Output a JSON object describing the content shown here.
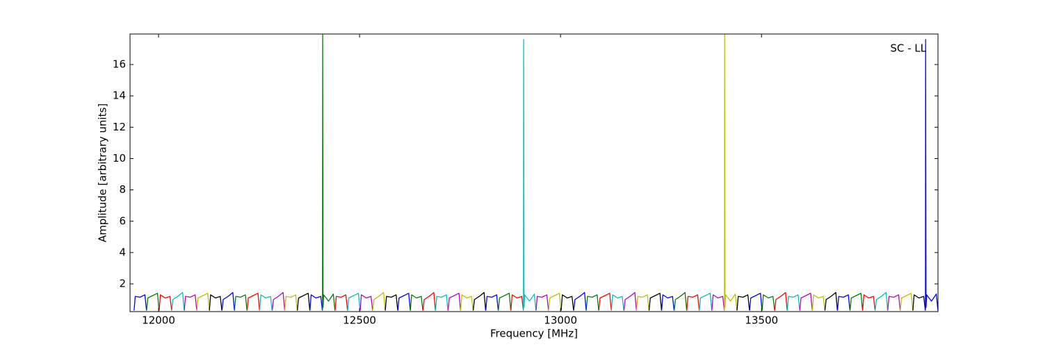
{
  "chart_data": {
    "type": "line",
    "xlabel": "Frequency [MHz]",
    "ylabel": "Amplitude [arbitrary units]",
    "annotation": "SC - LL",
    "xlim": [
      11929,
      13939
    ],
    "ylim": [
      0.23,
      17.95
    ],
    "xticks": [
      12000,
      12500,
      13000,
      13500
    ],
    "yticks": [
      2,
      4,
      6,
      8,
      10,
      12,
      14,
      16
    ],
    "series": [
      {
        "color": "#0000ff",
        "x": [
          11939,
          11942,
          11954,
          11966,
          11970
        ],
        "values": [
          0.3,
          1.2,
          1.15,
          1.3,
          0.3
        ]
      },
      {
        "color": "#008000",
        "x": [
          11970.25,
          11973.25,
          11985.25,
          11997.25,
          12001.25
        ],
        "values": [
          0.3,
          1.1,
          1.25,
          1.4,
          0.3
        ]
      },
      {
        "color": "#ff0000",
        "x": [
          12001.5,
          12004.5,
          12016.5,
          12028.5,
          12032.5
        ],
        "values": [
          0.3,
          1.3,
          1.1,
          1.2,
          0.3
        ]
      },
      {
        "color": "#00bfbf",
        "x": [
          12032.75,
          12035.75,
          12047.75,
          12059.75,
          12063.75
        ],
        "values": [
          0.3,
          1.0,
          1.2,
          1.45,
          0.3
        ]
      },
      {
        "color": "#bf00bf",
        "x": [
          12064,
          12067,
          12079,
          12091,
          12095
        ],
        "values": [
          0.3,
          1.2,
          1.15,
          1.3,
          0.3
        ]
      },
      {
        "color": "#bfbf00",
        "x": [
          12095.25,
          12098.25,
          12110.25,
          12122.25,
          12126.25
        ],
        "values": [
          0.3,
          1.1,
          1.25,
          1.4,
          0.3
        ]
      },
      {
        "color": "#000000",
        "x": [
          12126.5,
          12129.5,
          12141.5,
          12153.5,
          12157.5
        ],
        "values": [
          0.3,
          1.3,
          1.1,
          1.2,
          0.3
        ]
      },
      {
        "color": "#0000ff",
        "x": [
          12157.75,
          12160.75,
          12172.75,
          12184.75,
          12188.75
        ],
        "values": [
          0.3,
          1.0,
          1.2,
          1.45,
          0.3
        ]
      },
      {
        "color": "#008000",
        "x": [
          12189,
          12192,
          12204,
          12216,
          12220
        ],
        "values": [
          0.3,
          1.2,
          1.15,
          1.3,
          0.3
        ]
      },
      {
        "color": "#ff0000",
        "x": [
          12220.25,
          12223.25,
          12235.25,
          12247.25,
          12251.25
        ],
        "values": [
          0.3,
          1.1,
          1.25,
          1.4,
          0.3
        ]
      },
      {
        "color": "#00bfbf",
        "x": [
          12251.5,
          12254.5,
          12266.5,
          12278.5,
          12282.5
        ],
        "values": [
          0.3,
          1.3,
          1.1,
          1.2,
          0.3
        ]
      },
      {
        "color": "#bf00bf",
        "x": [
          12282.75,
          12285.75,
          12297.75,
          12309.75,
          12313.75
        ],
        "values": [
          0.3,
          1.0,
          1.2,
          1.45,
          0.3
        ]
      },
      {
        "color": "#bfbf00",
        "x": [
          12314,
          12317,
          12329,
          12341,
          12345
        ],
        "values": [
          0.3,
          1.2,
          1.15,
          1.3,
          0.3
        ]
      },
      {
        "color": "#000000",
        "x": [
          12345.25,
          12348.25,
          12360.25,
          12372.25,
          12376.25
        ],
        "values": [
          0.3,
          1.1,
          1.25,
          1.4,
          0.3
        ]
      },
      {
        "color": "#0000ff",
        "x": [
          12376.5,
          12379.5,
          12391.5,
          12403.5,
          12407.5
        ],
        "values": [
          0.3,
          1.3,
          1.1,
          1.2,
          0.3
        ]
      },
      {
        "color": "#008000",
        "x": [
          12407.75,
          12408.25,
          12409.25,
          12410.75,
          12422.75,
          12434.75,
          12438.75
        ],
        "values": [
          0.3,
          17.9,
          0.5,
          1.3,
          0.9,
          1.35,
          0.3
        ]
      },
      {
        "color": "#ff0000",
        "x": [
          12439,
          12442,
          12454,
          12466,
          12470
        ],
        "values": [
          0.3,
          1.2,
          1.15,
          1.3,
          0.3
        ]
      },
      {
        "color": "#00bfbf",
        "x": [
          12470.25,
          12473.25,
          12485.25,
          12497.25,
          12501.25
        ],
        "values": [
          0.3,
          1.1,
          1.25,
          1.4,
          0.3
        ]
      },
      {
        "color": "#bf00bf",
        "x": [
          12501.5,
          12504.5,
          12516.5,
          12528.5,
          12532.5
        ],
        "values": [
          0.3,
          1.3,
          1.1,
          1.2,
          0.3
        ]
      },
      {
        "color": "#bfbf00",
        "x": [
          12532.75,
          12535.75,
          12547.75,
          12559.75,
          12563.75
        ],
        "values": [
          0.3,
          1.0,
          1.2,
          1.45,
          0.3
        ]
      },
      {
        "color": "#000000",
        "x": [
          12564,
          12567,
          12579,
          12591,
          12595
        ],
        "values": [
          0.3,
          1.2,
          1.15,
          1.3,
          0.3
        ]
      },
      {
        "color": "#0000ff",
        "x": [
          12595.25,
          12598.25,
          12610.25,
          12622.25,
          12626.25
        ],
        "values": [
          0.3,
          1.1,
          1.25,
          1.4,
          0.3
        ]
      },
      {
        "color": "#008000",
        "x": [
          12626.5,
          12629.5,
          12641.5,
          12653.5,
          12657.5
        ],
        "values": [
          0.3,
          1.3,
          1.1,
          1.2,
          0.3
        ]
      },
      {
        "color": "#ff0000",
        "x": [
          12657.75,
          12660.75,
          12672.75,
          12684.75,
          12688.75
        ],
        "values": [
          0.3,
          1.0,
          1.2,
          1.45,
          0.3
        ]
      },
      {
        "color": "#00bfbf",
        "x": [
          12689,
          12692,
          12704,
          12716,
          12720
        ],
        "values": [
          0.3,
          1.2,
          1.15,
          1.3,
          0.3
        ]
      },
      {
        "color": "#bf00bf",
        "x": [
          12720.25,
          12723.25,
          12735.25,
          12747.25,
          12751.25
        ],
        "values": [
          0.3,
          1.1,
          1.25,
          1.4,
          0.3
        ]
      },
      {
        "color": "#bfbf00",
        "x": [
          12751.5,
          12754.5,
          12766.5,
          12778.5,
          12782.5
        ],
        "values": [
          0.3,
          1.3,
          1.1,
          1.2,
          0.3
        ]
      },
      {
        "color": "#000000",
        "x": [
          12782.75,
          12785.75,
          12797.75,
          12809.75,
          12813.75
        ],
        "values": [
          0.3,
          1.0,
          1.2,
          1.45,
          0.3
        ]
      },
      {
        "color": "#0000ff",
        "x": [
          12814,
          12817,
          12829,
          12841,
          12845
        ],
        "values": [
          0.3,
          1.2,
          1.15,
          1.3,
          0.3
        ]
      },
      {
        "color": "#008000",
        "x": [
          12845.25,
          12848.25,
          12860.25,
          12872.25,
          12876.25
        ],
        "values": [
          0.3,
          1.1,
          1.25,
          1.4,
          0.3
        ]
      },
      {
        "color": "#ff0000",
        "x": [
          12876.5,
          12879.5,
          12891.5,
          12903.5,
          12907.5
        ],
        "values": [
          0.3,
          1.3,
          1.1,
          1.2,
          0.3
        ]
      },
      {
        "color": "#00bfbf",
        "x": [
          12907.75,
          12908.25,
          12909.25,
          12910.75,
          12922.75,
          12934.75,
          12938.75
        ],
        "values": [
          0.3,
          17.6,
          0.5,
          1.3,
          0.9,
          1.35,
          0.3
        ]
      },
      {
        "color": "#bf00bf",
        "x": [
          12939,
          12942,
          12954,
          12966,
          12970
        ],
        "values": [
          0.3,
          1.2,
          1.15,
          1.3,
          0.3
        ]
      },
      {
        "color": "#bfbf00",
        "x": [
          12970.25,
          12973.25,
          12985.25,
          12997.25,
          13001.25
        ],
        "values": [
          0.3,
          1.1,
          1.25,
          1.4,
          0.3
        ]
      },
      {
        "color": "#000000",
        "x": [
          13001.5,
          13004.5,
          13016.5,
          13028.5,
          13032.5
        ],
        "values": [
          0.3,
          1.3,
          1.1,
          1.2,
          0.3
        ]
      },
      {
        "color": "#0000ff",
        "x": [
          13032.75,
          13035.75,
          13047.75,
          13059.75,
          13063.75
        ],
        "values": [
          0.3,
          1.0,
          1.2,
          1.45,
          0.3
        ]
      },
      {
        "color": "#008000",
        "x": [
          13064,
          13067,
          13079,
          13091,
          13095
        ],
        "values": [
          0.3,
          1.2,
          1.15,
          1.3,
          0.3
        ]
      },
      {
        "color": "#ff0000",
        "x": [
          13095.25,
          13098.25,
          13110.25,
          13122.25,
          13126.25
        ],
        "values": [
          0.3,
          1.1,
          1.25,
          1.4,
          0.3
        ]
      },
      {
        "color": "#00bfbf",
        "x": [
          13126.5,
          13129.5,
          13141.5,
          13153.5,
          13157.5
        ],
        "values": [
          0.3,
          1.3,
          1.1,
          1.2,
          0.3
        ]
      },
      {
        "color": "#bf00bf",
        "x": [
          13157.75,
          13160.75,
          13172.75,
          13184.75,
          13188.75
        ],
        "values": [
          0.3,
          1.0,
          1.2,
          1.45,
          0.3
        ]
      },
      {
        "color": "#bfbf00",
        "x": [
          13189,
          13192,
          13204,
          13216,
          13220
        ],
        "values": [
          0.3,
          1.2,
          1.15,
          1.3,
          0.3
        ]
      },
      {
        "color": "#000000",
        "x": [
          13220.25,
          13223.25,
          13235.25,
          13247.25,
          13251.25
        ],
        "values": [
          0.3,
          1.1,
          1.25,
          1.4,
          0.3
        ]
      },
      {
        "color": "#0000ff",
        "x": [
          13251.5,
          13254.5,
          13266.5,
          13278.5,
          13282.5
        ],
        "values": [
          0.3,
          1.3,
          1.1,
          1.2,
          0.3
        ]
      },
      {
        "color": "#008000",
        "x": [
          13282.75,
          13285.75,
          13297.75,
          13309.75,
          13313.75
        ],
        "values": [
          0.3,
          1.0,
          1.2,
          1.45,
          0.3
        ]
      },
      {
        "color": "#ff0000",
        "x": [
          13314,
          13317,
          13329,
          13341,
          13345
        ],
        "values": [
          0.3,
          1.2,
          1.15,
          1.3,
          0.3
        ]
      },
      {
        "color": "#00bfbf",
        "x": [
          13345.25,
          13348.25,
          13360.25,
          13372.25,
          13376.25
        ],
        "values": [
          0.3,
          1.1,
          1.25,
          1.4,
          0.3
        ]
      },
      {
        "color": "#bf00bf",
        "x": [
          13376.5,
          13379.5,
          13391.5,
          13403.5,
          13407.5
        ],
        "values": [
          0.3,
          1.3,
          1.1,
          1.2,
          0.3
        ]
      },
      {
        "color": "#bfbf00",
        "x": [
          13407.75,
          13408.25,
          13409.25,
          13410.75,
          13422.75,
          13434.75,
          13438.75
        ],
        "values": [
          0.3,
          17.95,
          0.5,
          1.3,
          0.9,
          1.35,
          0.3
        ]
      },
      {
        "color": "#000000",
        "x": [
          13439,
          13442,
          13454,
          13466,
          13470
        ],
        "values": [
          0.3,
          1.2,
          1.15,
          1.3,
          0.3
        ]
      },
      {
        "color": "#0000ff",
        "x": [
          13470.25,
          13473.25,
          13485.25,
          13497.25,
          13501.25
        ],
        "values": [
          0.3,
          1.1,
          1.25,
          1.4,
          0.3
        ]
      },
      {
        "color": "#008000",
        "x": [
          13501.5,
          13504.5,
          13516.5,
          13528.5,
          13532.5
        ],
        "values": [
          0.3,
          1.3,
          1.1,
          1.2,
          0.3
        ]
      },
      {
        "color": "#ff0000",
        "x": [
          13532.75,
          13535.75,
          13547.75,
          13559.75,
          13563.75
        ],
        "values": [
          0.3,
          1.0,
          1.2,
          1.45,
          0.3
        ]
      },
      {
        "color": "#00bfbf",
        "x": [
          13564,
          13567,
          13579,
          13591,
          13595
        ],
        "values": [
          0.3,
          1.2,
          1.15,
          1.3,
          0.3
        ]
      },
      {
        "color": "#bf00bf",
        "x": [
          13595.25,
          13598.25,
          13610.25,
          13622.25,
          13626.25
        ],
        "values": [
          0.3,
          1.1,
          1.25,
          1.4,
          0.3
        ]
      },
      {
        "color": "#bfbf00",
        "x": [
          13626.5,
          13629.5,
          13641.5,
          13653.5,
          13657.5
        ],
        "values": [
          0.3,
          1.3,
          1.1,
          1.2,
          0.3
        ]
      },
      {
        "color": "#000000",
        "x": [
          13657.75,
          13660.75,
          13672.75,
          13684.75,
          13688.75
        ],
        "values": [
          0.3,
          1.0,
          1.2,
          1.45,
          0.3
        ]
      },
      {
        "color": "#0000ff",
        "x": [
          13689,
          13692,
          13704,
          13716,
          13720
        ],
        "values": [
          0.3,
          1.2,
          1.15,
          1.3,
          0.3
        ]
      },
      {
        "color": "#008000",
        "x": [
          13720.25,
          13723.25,
          13735.25,
          13747.25,
          13751.25
        ],
        "values": [
          0.3,
          1.1,
          1.25,
          1.4,
          0.3
        ]
      },
      {
        "color": "#ff0000",
        "x": [
          13751.5,
          13754.5,
          13766.5,
          13778.5,
          13782.5
        ],
        "values": [
          0.3,
          1.3,
          1.1,
          1.2,
          0.3
        ]
      },
      {
        "color": "#00bfbf",
        "x": [
          13782.75,
          13785.75,
          13797.75,
          13809.75,
          13813.75
        ],
        "values": [
          0.3,
          1.0,
          1.2,
          1.45,
          0.3
        ]
      },
      {
        "color": "#bf00bf",
        "x": [
          13814,
          13817,
          13829,
          13841,
          13845
        ],
        "values": [
          0.3,
          1.2,
          1.15,
          1.3,
          0.3
        ]
      },
      {
        "color": "#bfbf00",
        "x": [
          13845.25,
          13848.25,
          13860.25,
          13872.25,
          13876.25
        ],
        "values": [
          0.3,
          1.1,
          1.25,
          1.4,
          0.3
        ]
      },
      {
        "color": "#000000",
        "x": [
          13876.5,
          13879.5,
          13891.5,
          13903.5,
          13907.5
        ],
        "values": [
          0.3,
          1.3,
          1.1,
          1.2,
          0.3
        ]
      },
      {
        "color": "#0000ff",
        "x": [
          13907.75,
          13908.25,
          13909.25,
          13910.75,
          13922.75,
          13934.75,
          13938.75
        ],
        "values": [
          0.3,
          17.6,
          0.5,
          1.3,
          0.9,
          1.35,
          0.3
        ]
      }
    ]
  }
}
